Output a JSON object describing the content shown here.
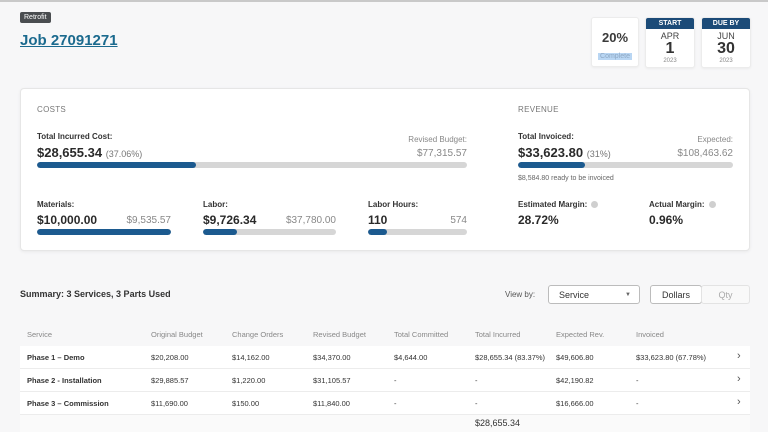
{
  "header": {
    "tag": "Retrofit",
    "job_title": "Job 27091271",
    "progress": {
      "value_label": "20%",
      "value_percent": 20,
      "label": "Complete"
    },
    "start": {
      "header": "START",
      "month": "APR",
      "day": "1",
      "year": "2023"
    },
    "due": {
      "header": "DUE BY",
      "month": "JUN",
      "day": "30",
      "year": "2023"
    }
  },
  "costs": {
    "title": "COSTS",
    "total_incurred_label": "Total Incurred Cost:",
    "total_incurred_value": "$28,655.34",
    "total_incurred_pct": "(37.06%)",
    "total_incurred_fill_percent": 37.06,
    "revised_budget_label": "Revised Budget:",
    "revised_budget_value": "$77,315.57",
    "materials": {
      "label": "Materials:",
      "value": "$10,000.00",
      "budget": "$9,535.57",
      "fill_percent": 100
    },
    "labor": {
      "label": "Labor:",
      "value": "$9,726.34",
      "budget": "$37,780.00",
      "fill_percent": 25.7
    },
    "labor_hours": {
      "label": "Labor Hours:",
      "value": "110",
      "budget": "574",
      "fill_percent": 19.2
    }
  },
  "revenue": {
    "title": "REVENUE",
    "total_invoiced_label": "Total Invoiced:",
    "total_invoiced_value": "$33,623.80",
    "total_invoiced_pct": "(31%)",
    "total_invoiced_fill_percent": 31,
    "expected_label": "Expected:",
    "expected_value": "$108,463.62",
    "ready_amount": "$8,584.80",
    "ready_text": "ready to be invoiced",
    "estimated_margin_label": "Estimated Margin:",
    "estimated_margin_value": "28.72%",
    "actual_margin_label": "Actual Margin:",
    "actual_margin_value": "0.96%"
  },
  "summary": {
    "title": "Summary: 3 Services, 3 Parts Used",
    "view_by_label": "View by:",
    "view_by_selected": "Service",
    "toggle": {
      "dollars": "Dollars",
      "qty": "Qty",
      "active": "Dollars"
    }
  },
  "table": {
    "columns": [
      "Service",
      "Original Budget",
      "Change Orders",
      "Revised Budget",
      "Total Committed",
      "Total Incurred",
      "Expected Rev.",
      "Invoiced"
    ],
    "rows": [
      [
        "Phase 1 – Demo",
        "$20,208.00",
        "$14,162.00",
        "$34,370.00",
        "$4,644.00",
        "$28,655.34 (83.37%)",
        "$49,606.80",
        "$33,623.80 (67.78%)"
      ],
      [
        "Phase 2 - Installation",
        "$29,885.57",
        "$1,220.00",
        "$31,105.57",
        "-",
        "-",
        "$42,190.82",
        "-"
      ],
      [
        "Phase 3 – Commission",
        "$11,690.00",
        "$150.00",
        "$11,840.00",
        "-",
        "-",
        "$16,666.00",
        "-"
      ]
    ],
    "footer_total_incurred": "$28,655.34",
    "row_chevron": "›"
  },
  "colors": {
    "accent": "#1c5a8f",
    "link": "#1b6a8e",
    "date_header": "#1c4b78",
    "bar_track": "#d6d6d6"
  }
}
